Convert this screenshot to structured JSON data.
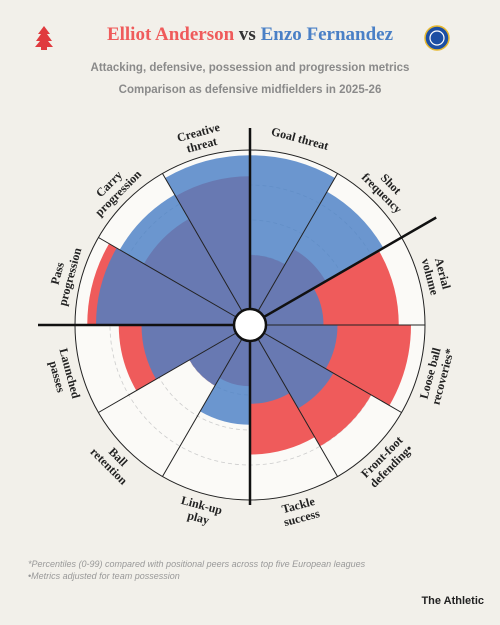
{
  "header": {
    "vs": "vs",
    "subtitle": [
      "Attacking, defensive, possession and progression metrics",
      "Comparison as defensive midfielders in 2025-26"
    ]
  },
  "chart_data": {
    "type": "pizza",
    "categories": [
      [
        "Goal threat"
      ],
      [
        "Shot",
        "frequency"
      ],
      [
        "Aerial",
        "volume"
      ],
      [
        "Loose ball",
        "recoveries*"
      ],
      [
        "Front-foot",
        "defending•"
      ],
      [
        "Tackle",
        "success"
      ],
      [
        "Link-up",
        "play"
      ],
      [
        "Ball",
        "retention"
      ],
      [
        "Launched",
        "passes"
      ],
      [
        "Pass",
        "progression"
      ],
      [
        "Carry",
        "progression"
      ],
      [
        "Creative",
        "threat"
      ]
    ],
    "rlim": [
      0,
      100
    ],
    "rticks": [
      20,
      40,
      60,
      80
    ],
    "series": [
      {
        "name": "Elliot Anderson",
        "color": "#ef5b5b",
        "values": [
          40,
          50,
          85,
          92,
          80,
          74,
          35,
          40,
          75,
          93,
          70,
          85
        ]
      },
      {
        "name": "Enzo Fernandez",
        "color": "#4a80c6",
        "values": [
          97,
          88,
          42,
          50,
          55,
          45,
          57,
          40,
          62,
          88,
          86,
          97
        ]
      }
    ]
  },
  "footnotes": [
    "*Percentiles (0-99) compared with positional peers across top five European leagues",
    "•Metrics adjusted for team possession"
  ],
  "brand": "The Athletic"
}
